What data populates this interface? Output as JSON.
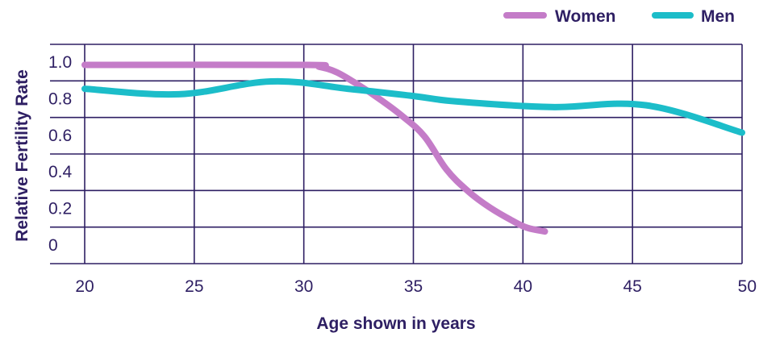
{
  "chart_data": {
    "type": "line",
    "title": "",
    "xlabel": "Age shown in years",
    "ylabel": "Relative Fertility Rate",
    "xlim": [
      20,
      50
    ],
    "ylim": [
      0,
      1.0
    ],
    "x_ticks": [
      20,
      25,
      30,
      35,
      40,
      45,
      50
    ],
    "x_tick_labels": [
      "20",
      "25",
      "30",
      "35",
      "40",
      "45",
      "50"
    ],
    "y_ticks": [
      0,
      0.2,
      0.4,
      0.6,
      0.8,
      1.0
    ],
    "y_tick_labels": [
      "0",
      "0.2",
      "0.4",
      "0.6",
      "0.8",
      "1.0"
    ],
    "grid": true,
    "legend_position": "top-right",
    "series": [
      {
        "name": "Women",
        "color": "#c47cc8",
        "x": [
          20,
          30,
          30.7,
          31.5,
          32.5,
          33.5,
          34.5,
          35.5,
          36.5,
          37.5,
          38.5,
          39.5,
          40.2,
          41
        ],
        "y": [
          0.98,
          0.98,
          0.97,
          0.94,
          0.87,
          0.79,
          0.7,
          0.59,
          0.41,
          0.29,
          0.2,
          0.13,
          0.09,
          0.07
        ]
      },
      {
        "name": "Men",
        "color": "#1cbdc9",
        "x": [
          20,
          24.3,
          28.5,
          32,
          35,
          37,
          41.3,
          45.6,
          50
        ],
        "y": [
          0.85,
          0.82,
          0.89,
          0.85,
          0.81,
          0.78,
          0.75,
          0.76,
          0.61
        ]
      }
    ]
  }
}
